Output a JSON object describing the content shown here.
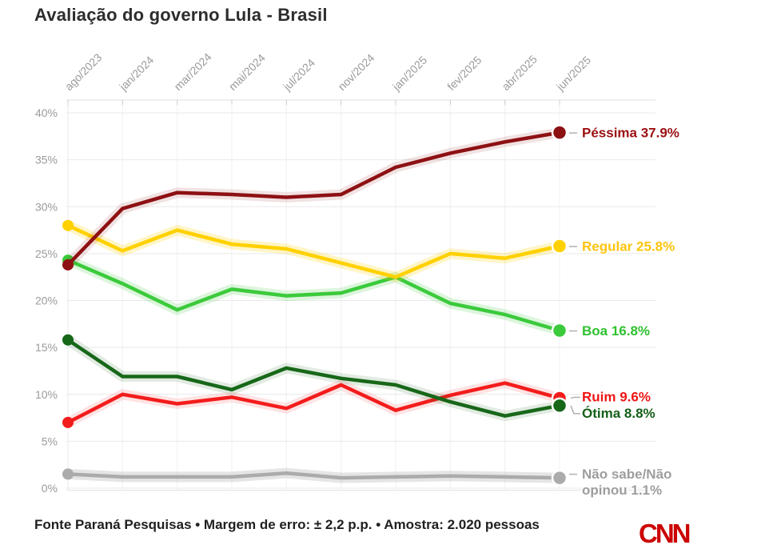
{
  "page": {
    "title": "Avaliação do governo Lula - Brasil",
    "footer": "Fonte Paraná Pesquisas • Margem de erro: ± 2,2 p.p. • Amostra: 2.020 pessoas",
    "logo": "CNN"
  },
  "chart_data": {
    "type": "line",
    "title": "Avaliação do governo Lula - Brasil",
    "categories": [
      "ago/2023",
      "jan/2024",
      "mar/2024",
      "mai/2024",
      "jul/2024",
      "nov/2024",
      "jan/2025",
      "fev/2025",
      "abr/2025",
      "jun/2025"
    ],
    "y_axis": {
      "ticks": [
        "0%",
        "5%",
        "10%",
        "15%",
        "20%",
        "25%",
        "30%",
        "35%",
        "40%"
      ],
      "min": 0,
      "max": 40,
      "step": 5,
      "unit": "%"
    },
    "grid": true,
    "legend_position": "right",
    "margin_of_error_pp": 2.2,
    "series": [
      {
        "name": "Não sabe/Não opinou",
        "label_lines": [
          "Não sabe/Não",
          "opinou 1.1%"
        ],
        "final_label": "Não sabe/Não opinou 1.1%",
        "color": "#ababab",
        "halo": "rgba(170,170,170,0.30)",
        "label_color": "#9d9d9d",
        "connector": "dash",
        "label_dy": 1,
        "values": [
          1.5,
          1.2,
          1.2,
          1.2,
          1.6,
          1.1,
          1.2,
          1.3,
          1.2,
          1.1
        ]
      },
      {
        "name": "Boa",
        "label_lines": [
          "Boa 16.8%"
        ],
        "final_label": "Boa 16.8%",
        "color": "#3bca3b",
        "halo": "rgba(60,200,60,0.18)",
        "label_color": "#2fc12f",
        "connector": "dash",
        "label_dy": 6,
        "values": [
          24.3,
          21.8,
          19.0,
          21.2,
          20.5,
          20.8,
          22.5,
          19.7,
          18.5,
          16.8
        ]
      },
      {
        "name": "Regular",
        "label_lines": [
          "Regular 25.8%"
        ],
        "final_label": "Regular 25.8%",
        "color": "#ffd100",
        "halo": "rgba(255,209,0,0.22)",
        "label_color": "#fdc40e",
        "connector": "dash",
        "label_dy": 6,
        "values": [
          28.0,
          25.3,
          27.5,
          26.0,
          25.5,
          24.0,
          22.5,
          25.0,
          24.5,
          25.8
        ]
      },
      {
        "name": "Péssima",
        "label_lines": [
          "Péssima 37.9%"
        ],
        "final_label": "Péssima 37.9%",
        "color": "#8d1013",
        "halo": "rgba(141,16,19,0.12)",
        "label_color": "#9a1012",
        "connector": "dash",
        "label_dy": 6,
        "values": [
          23.8,
          29.8,
          31.5,
          31.3,
          31.0,
          31.3,
          34.2,
          35.7,
          36.9,
          37.9
        ]
      },
      {
        "name": "Ruim",
        "label_lines": [
          "Ruim 9.6%"
        ],
        "final_label": "Ruim 9.6%",
        "color": "#f31c1c",
        "halo": "rgba(243,28,28,0.12)",
        "label_color": "#ee1515",
        "connector": "elbow",
        "label_dy": 4,
        "values": [
          7.0,
          10.0,
          9.0,
          9.7,
          8.5,
          11.0,
          8.3,
          9.9,
          11.2,
          9.6
        ]
      },
      {
        "name": "Ótima",
        "label_lines": [
          "Ótima 8.8%"
        ],
        "final_label": "Ótima 8.8%",
        "color": "#176719",
        "halo": "rgba(23,103,25,0.13)",
        "label_color": "#155f18",
        "connector": "elbow",
        "label_dy": 15,
        "values": [
          15.8,
          11.9,
          11.9,
          10.5,
          12.8,
          11.7,
          11.0,
          9.2,
          7.7,
          8.8
        ]
      }
    ]
  }
}
